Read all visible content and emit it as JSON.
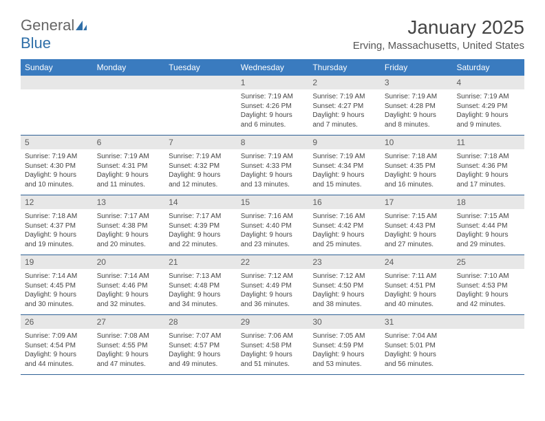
{
  "logo": {
    "general": "General",
    "blue": "Blue"
  },
  "title": "January 2025",
  "location": "Erving, Massachusetts, United States",
  "header_bg": "#3a7bbf",
  "daynum_bg": "#e7e7e7",
  "week_border": "#2d5f94",
  "dow": [
    "Sunday",
    "Monday",
    "Tuesday",
    "Wednesday",
    "Thursday",
    "Friday",
    "Saturday"
  ],
  "weeks": [
    [
      {
        "empty": true
      },
      {
        "empty": true
      },
      {
        "empty": true
      },
      {
        "n": "1",
        "sr": "Sunrise: 7:19 AM",
        "ss": "Sunset: 4:26 PM",
        "dl": "Daylight: 9 hours and 6 minutes."
      },
      {
        "n": "2",
        "sr": "Sunrise: 7:19 AM",
        "ss": "Sunset: 4:27 PM",
        "dl": "Daylight: 9 hours and 7 minutes."
      },
      {
        "n": "3",
        "sr": "Sunrise: 7:19 AM",
        "ss": "Sunset: 4:28 PM",
        "dl": "Daylight: 9 hours and 8 minutes."
      },
      {
        "n": "4",
        "sr": "Sunrise: 7:19 AM",
        "ss": "Sunset: 4:29 PM",
        "dl": "Daylight: 9 hours and 9 minutes."
      }
    ],
    [
      {
        "n": "5",
        "sr": "Sunrise: 7:19 AM",
        "ss": "Sunset: 4:30 PM",
        "dl": "Daylight: 9 hours and 10 minutes."
      },
      {
        "n": "6",
        "sr": "Sunrise: 7:19 AM",
        "ss": "Sunset: 4:31 PM",
        "dl": "Daylight: 9 hours and 11 minutes."
      },
      {
        "n": "7",
        "sr": "Sunrise: 7:19 AM",
        "ss": "Sunset: 4:32 PM",
        "dl": "Daylight: 9 hours and 12 minutes."
      },
      {
        "n": "8",
        "sr": "Sunrise: 7:19 AM",
        "ss": "Sunset: 4:33 PM",
        "dl": "Daylight: 9 hours and 13 minutes."
      },
      {
        "n": "9",
        "sr": "Sunrise: 7:19 AM",
        "ss": "Sunset: 4:34 PM",
        "dl": "Daylight: 9 hours and 15 minutes."
      },
      {
        "n": "10",
        "sr": "Sunrise: 7:18 AM",
        "ss": "Sunset: 4:35 PM",
        "dl": "Daylight: 9 hours and 16 minutes."
      },
      {
        "n": "11",
        "sr": "Sunrise: 7:18 AM",
        "ss": "Sunset: 4:36 PM",
        "dl": "Daylight: 9 hours and 17 minutes."
      }
    ],
    [
      {
        "n": "12",
        "sr": "Sunrise: 7:18 AM",
        "ss": "Sunset: 4:37 PM",
        "dl": "Daylight: 9 hours and 19 minutes."
      },
      {
        "n": "13",
        "sr": "Sunrise: 7:17 AM",
        "ss": "Sunset: 4:38 PM",
        "dl": "Daylight: 9 hours and 20 minutes."
      },
      {
        "n": "14",
        "sr": "Sunrise: 7:17 AM",
        "ss": "Sunset: 4:39 PM",
        "dl": "Daylight: 9 hours and 22 minutes."
      },
      {
        "n": "15",
        "sr": "Sunrise: 7:16 AM",
        "ss": "Sunset: 4:40 PM",
        "dl": "Daylight: 9 hours and 23 minutes."
      },
      {
        "n": "16",
        "sr": "Sunrise: 7:16 AM",
        "ss": "Sunset: 4:42 PM",
        "dl": "Daylight: 9 hours and 25 minutes."
      },
      {
        "n": "17",
        "sr": "Sunrise: 7:15 AM",
        "ss": "Sunset: 4:43 PM",
        "dl": "Daylight: 9 hours and 27 minutes."
      },
      {
        "n": "18",
        "sr": "Sunrise: 7:15 AM",
        "ss": "Sunset: 4:44 PM",
        "dl": "Daylight: 9 hours and 29 minutes."
      }
    ],
    [
      {
        "n": "19",
        "sr": "Sunrise: 7:14 AM",
        "ss": "Sunset: 4:45 PM",
        "dl": "Daylight: 9 hours and 30 minutes."
      },
      {
        "n": "20",
        "sr": "Sunrise: 7:14 AM",
        "ss": "Sunset: 4:46 PM",
        "dl": "Daylight: 9 hours and 32 minutes."
      },
      {
        "n": "21",
        "sr": "Sunrise: 7:13 AM",
        "ss": "Sunset: 4:48 PM",
        "dl": "Daylight: 9 hours and 34 minutes."
      },
      {
        "n": "22",
        "sr": "Sunrise: 7:12 AM",
        "ss": "Sunset: 4:49 PM",
        "dl": "Daylight: 9 hours and 36 minutes."
      },
      {
        "n": "23",
        "sr": "Sunrise: 7:12 AM",
        "ss": "Sunset: 4:50 PM",
        "dl": "Daylight: 9 hours and 38 minutes."
      },
      {
        "n": "24",
        "sr": "Sunrise: 7:11 AM",
        "ss": "Sunset: 4:51 PM",
        "dl": "Daylight: 9 hours and 40 minutes."
      },
      {
        "n": "25",
        "sr": "Sunrise: 7:10 AM",
        "ss": "Sunset: 4:53 PM",
        "dl": "Daylight: 9 hours and 42 minutes."
      }
    ],
    [
      {
        "n": "26",
        "sr": "Sunrise: 7:09 AM",
        "ss": "Sunset: 4:54 PM",
        "dl": "Daylight: 9 hours and 44 minutes."
      },
      {
        "n": "27",
        "sr": "Sunrise: 7:08 AM",
        "ss": "Sunset: 4:55 PM",
        "dl": "Daylight: 9 hours and 47 minutes."
      },
      {
        "n": "28",
        "sr": "Sunrise: 7:07 AM",
        "ss": "Sunset: 4:57 PM",
        "dl": "Daylight: 9 hours and 49 minutes."
      },
      {
        "n": "29",
        "sr": "Sunrise: 7:06 AM",
        "ss": "Sunset: 4:58 PM",
        "dl": "Daylight: 9 hours and 51 minutes."
      },
      {
        "n": "30",
        "sr": "Sunrise: 7:05 AM",
        "ss": "Sunset: 4:59 PM",
        "dl": "Daylight: 9 hours and 53 minutes."
      },
      {
        "n": "31",
        "sr": "Sunrise: 7:04 AM",
        "ss": "Sunset: 5:01 PM",
        "dl": "Daylight: 9 hours and 56 minutes."
      },
      {
        "empty": true
      }
    ]
  ]
}
